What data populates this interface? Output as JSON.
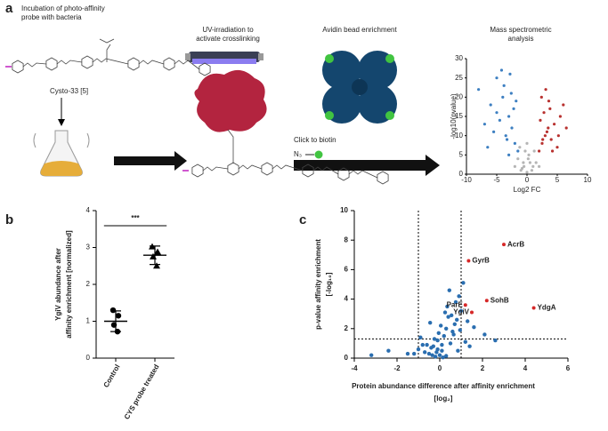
{
  "panel_a": {
    "label": "a",
    "step1": [
      "Incubation of photo-affinity",
      "probe with bacteria"
    ],
    "compound": "Cysto-33 [5]",
    "step2": [
      "UV-irradiation to",
      "activate crosslinking"
    ],
    "click": "Click to biotin",
    "azide": "N₃",
    "step3": "Avidin bead enrichment",
    "step4": [
      "Mass spectrometric",
      "analysis"
    ]
  },
  "panel_b": {
    "label": "b"
  },
  "panel_c": {
    "label": "c"
  },
  "chart_data": [
    {
      "type": "scatter",
      "xlabel": "Log2 FC",
      "ylabel": "-log10(pvalue)",
      "xlim": [
        -10,
        10
      ],
      "xticks": [
        -10,
        -5,
        0,
        5,
        10
      ],
      "ylim": [
        0,
        30
      ],
      "yticks": [
        0,
        5,
        10,
        15,
        20,
        25,
        30
      ],
      "series": [
        {
          "color": "#b8312f",
          "x": [
            2,
            2.5,
            3,
            3.5,
            4,
            2.2,
            2.8,
            3.3,
            4.5,
            5,
            5.5,
            6,
            2.4,
            3.1,
            3.8,
            4.2,
            5.2,
            6.5,
            2.6,
            3.6
          ],
          "y": [
            6,
            8,
            10,
            12,
            9,
            14,
            16,
            11,
            13,
            7,
            15,
            18,
            20,
            22,
            17,
            6,
            10,
            12,
            9,
            19
          ]
        },
        {
          "color": "#3d7fc1",
          "x": [
            -1.5,
            -2,
            -2.5,
            -3,
            -3.5,
            -4,
            -5,
            -6,
            -7,
            -8,
            -2.2,
            -2.8,
            -3.3,
            -4.5,
            -5.5,
            -1.8,
            -3.8,
            -6.5,
            -2.6,
            -4.2,
            -5,
            -3
          ],
          "y": [
            6,
            8,
            12,
            15,
            10,
            20,
            25,
            18,
            13,
            22,
            17,
            26,
            9,
            14,
            11,
            19,
            23,
            7,
            21,
            27,
            16,
            5
          ]
        },
        {
          "color": "#b5b5b5",
          "x": [
            -1,
            -0.5,
            0,
            0.5,
            1,
            -1.5,
            1.5,
            -0.3,
            0.3,
            -0.8,
            0.8,
            0,
            -2,
            2,
            -1.2,
            1.2,
            0.2,
            -0.6
          ],
          "y": [
            1,
            2,
            0.5,
            3,
            2,
            4,
            3,
            6,
            5,
            1.5,
            1,
            8,
            2,
            2,
            7,
            6,
            4,
            3
          ]
        }
      ]
    },
    {
      "type": "dot",
      "ylabel": [
        "YgiV abundance after",
        "affinity enrichment [normalized]"
      ],
      "categories": [
        "Control",
        "CYS probe treated"
      ],
      "ylim": [
        0,
        4
      ],
      "yticks": [
        0,
        1,
        2,
        3,
        4
      ],
      "annotation": "***",
      "points": [
        [
          1.3,
          1.15,
          0.9,
          0.72
        ],
        [
          3.02,
          2.88,
          2.75,
          2.5
        ]
      ],
      "means": [
        1.0,
        2.79
      ],
      "sd": [
        0.28,
        0.25
      ],
      "color": "#000000"
    },
    {
      "type": "volcano",
      "ylabel": [
        "p-value affinity enrichment",
        "[-log₁₀]"
      ],
      "xlabel": [
        "Protein abundance difference after affinity enrichment",
        "[log₂]"
      ],
      "xlim": [
        -4,
        6
      ],
      "xticks": [
        -4,
        -2,
        0,
        2,
        4,
        6
      ],
      "ylim": [
        0,
        10
      ],
      "yticks": [
        0,
        2,
        4,
        6,
        8,
        10
      ],
      "x_thresholds": [
        -1,
        1
      ],
      "y_threshold": 1.3,
      "color": "#2a6eb0",
      "highlight_color": "#d62828",
      "x": [
        -0.5,
        -0.3,
        -0.1,
        0,
        0.1,
        0.2,
        0.3,
        0.5,
        -0.7,
        0.7,
        -0.2,
        0.4,
        -0.4,
        0.6,
        0.8,
        1,
        1.2,
        -1,
        -1.2,
        -0.9,
        0.9,
        1.1,
        -0.6,
        0.05,
        -0.05,
        0.15,
        -0.15,
        0.35,
        -0.35,
        1.4,
        0.95,
        1.3,
        -1.5,
        -2.4,
        -3.2,
        2.1,
        2.6,
        0.55,
        0.45,
        -0.8,
        0.25,
        -0.25,
        0.75,
        1.6,
        0.65,
        0.85,
        -0.45,
        0.1,
        0.3,
        -0.1
      ],
      "y": [
        0.3,
        0.8,
        1.2,
        0.2,
        0.5,
        1.5,
        2,
        1,
        0.4,
        2.3,
        0.1,
        2.8,
        0.7,
        1.8,
        2.6,
        3.2,
        1.1,
        0.6,
        0.3,
        1.4,
        4.2,
        5.1,
        0.9,
        2.2,
        1.7,
        0.05,
        0.4,
        3.5,
        0.2,
        0.8,
        1.9,
        2.5,
        0.3,
        0.5,
        0.2,
        1.6,
        1.2,
        2.9,
        4.6,
        0.9,
        3.1,
        1.3,
        3.8,
        2.1,
        1.6,
        0.5,
        2.4,
        0.9,
        0.15,
        0.6
      ],
      "highlights": {
        "names": [
          "AcrB",
          "GyrB",
          "SohB",
          "YdgA",
          "ParE",
          "YgiV"
        ],
        "x": [
          3.0,
          1.35,
          2.2,
          4.4,
          1.2,
          1.5
        ],
        "y": [
          7.7,
          6.6,
          3.9,
          3.4,
          3.6,
          3.1
        ]
      }
    }
  ]
}
